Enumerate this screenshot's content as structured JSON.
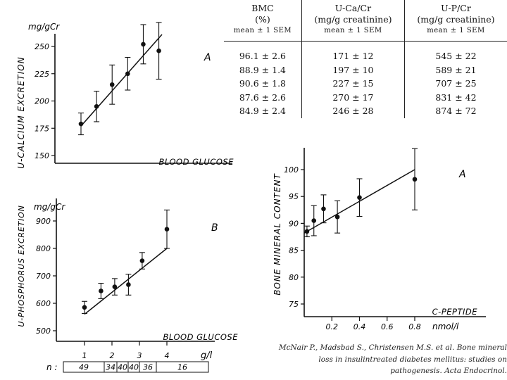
{
  "chart_data": [
    {
      "type": "scatter",
      "panel_label": "A",
      "title": "",
      "xlabel": "BLOOD GLUCOSE",
      "ylabel": "U-CALCIUM EXCRETION",
      "yunit": "mg/gCr",
      "ylim": [
        150,
        265
      ],
      "yticks": [
        150,
        175,
        200,
        225,
        250
      ],
      "x": [
        1,
        1.5,
        2,
        2.5,
        3,
        3.5
      ],
      "y": [
        179,
        195,
        215,
        225,
        252,
        246
      ],
      "err": [
        10,
        14,
        18,
        15,
        18,
        26
      ],
      "fit": [
        [
          1,
          177
        ],
        [
          3.6,
          261
        ]
      ]
    },
    {
      "type": "scatter",
      "panel_label": "B",
      "title": "",
      "xlabel": "BLOOD GLUCOSE",
      "ylabel": "U-PHOSPHORUS EXCRETION",
      "yunit": "mg/gCr",
      "xunit": "g/l",
      "ylim": [
        500,
        950
      ],
      "yticks": [
        500,
        600,
        700,
        800,
        900
      ],
      "xticks": [
        1,
        2,
        3,
        4
      ],
      "x": [
        1,
        1.6,
        2.1,
        2.6,
        3.1,
        4
      ],
      "y": [
        585,
        645,
        660,
        668,
        755,
        870
      ],
      "err": [
        22,
        28,
        30,
        38,
        30,
        70
      ],
      "fit": [
        [
          1,
          560
        ],
        [
          4,
          800
        ]
      ],
      "n_label": "n :",
      "n_values": [
        "49",
        "34",
        "40",
        "40",
        "36",
        "16"
      ]
    },
    {
      "type": "scatter",
      "panel_label": "A",
      "title": "",
      "xlabel": "C-PEPTIDE",
      "xunit": "nmol/l",
      "ylabel": "BONE MINERAL CONTENT",
      "ylim": [
        75,
        103
      ],
      "yticks": [
        75,
        80,
        85,
        90,
        95,
        100
      ],
      "xlim": [
        0,
        0.8
      ],
      "xticks": [
        "0.2",
        "0.4",
        "0.6",
        "0.8"
      ],
      "x": [
        0.02,
        0.07,
        0.14,
        0.24,
        0.4,
        0.8
      ],
      "y": [
        88.5,
        90.5,
        92.7,
        91.2,
        94.8,
        98.2
      ],
      "err": [
        1.0,
        2.8,
        2.6,
        3.0,
        3.5,
        5.7
      ],
      "fit": [
        [
          0.0,
          88.2
        ],
        [
          0.8,
          100
        ]
      ]
    }
  ],
  "table": {
    "headers": [
      {
        "name": "BMC",
        "unit": "(%)",
        "stat": "mean ± 1 SEM"
      },
      {
        "name": "U-Ca/Cr",
        "unit": "(mg/g creatinine)",
        "stat": "mean ± 1 SEM"
      },
      {
        "name": "U-P/Cr",
        "unit": "(mg/g creatinine)",
        "stat": "mean ± 1 SEM"
      }
    ],
    "rows": [
      [
        "96.1 ± 2.6",
        "171 ± 12",
        "545 ± 22"
      ],
      [
        "88.9 ± 1.4",
        "197 ± 10",
        "589 ± 21"
      ],
      [
        "90.6 ± 1.8",
        "227 ± 15",
        "707 ± 25"
      ],
      [
        "87.6 ± 2.6",
        "270 ± 17",
        "831 ± 42"
      ],
      [
        "84.9 ± 2.4",
        "246 ± 28",
        "874 ± 72"
      ]
    ]
  },
  "citation": "McNair P., Madsbad S., Christensen M.S. et al. Bone mineral loss in insulintreated diabetes mellitus: studies on pathogenesis. Acta Endocrinol."
}
